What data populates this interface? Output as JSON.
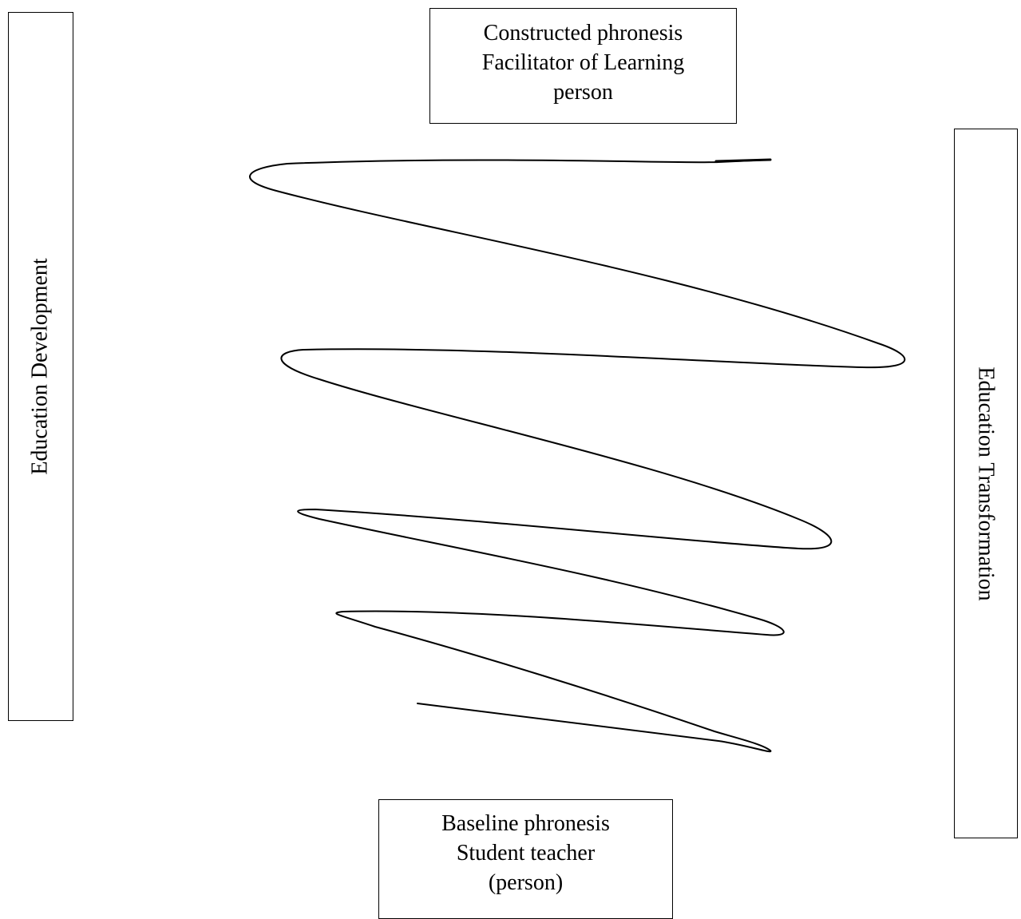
{
  "top_box": {
    "lines": [
      "Constructed phronesis",
      "Facilitator of Learning",
      "person"
    ]
  },
  "bottom_box": {
    "lines": [
      "Baseline phronesis",
      "Student teacher",
      "(person)"
    ]
  },
  "left_box": {
    "label": "Education Development"
  },
  "right_box": {
    "label": "Education Transformation"
  },
  "spiral": {
    "stroke_color": "#000000"
  }
}
